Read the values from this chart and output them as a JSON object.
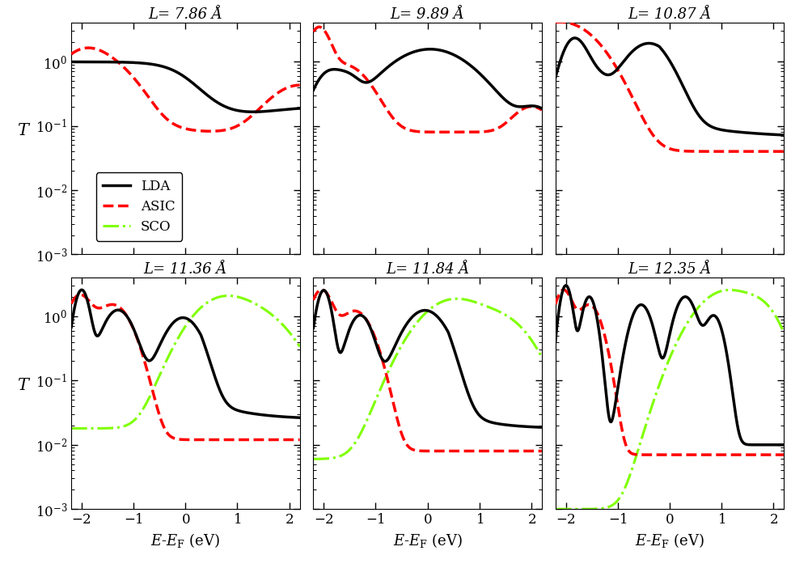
{
  "panel_titles": [
    "L= 7.86 Å",
    "L= 9.89 Å",
    "L= 10.87 Å",
    "L= 11.36 Å",
    "L= 11.84 Å",
    "L= 12.35 Å"
  ],
  "xlim": [
    -2.2,
    2.2
  ],
  "ylim": [
    0.001,
    4.0
  ],
  "lda_color": "#000000",
  "asic_color": "#ff0000",
  "sco_color": "#80ff00",
  "lda_lw": 2.5,
  "asic_lw": 2.5,
  "sco_lw": 2.2
}
